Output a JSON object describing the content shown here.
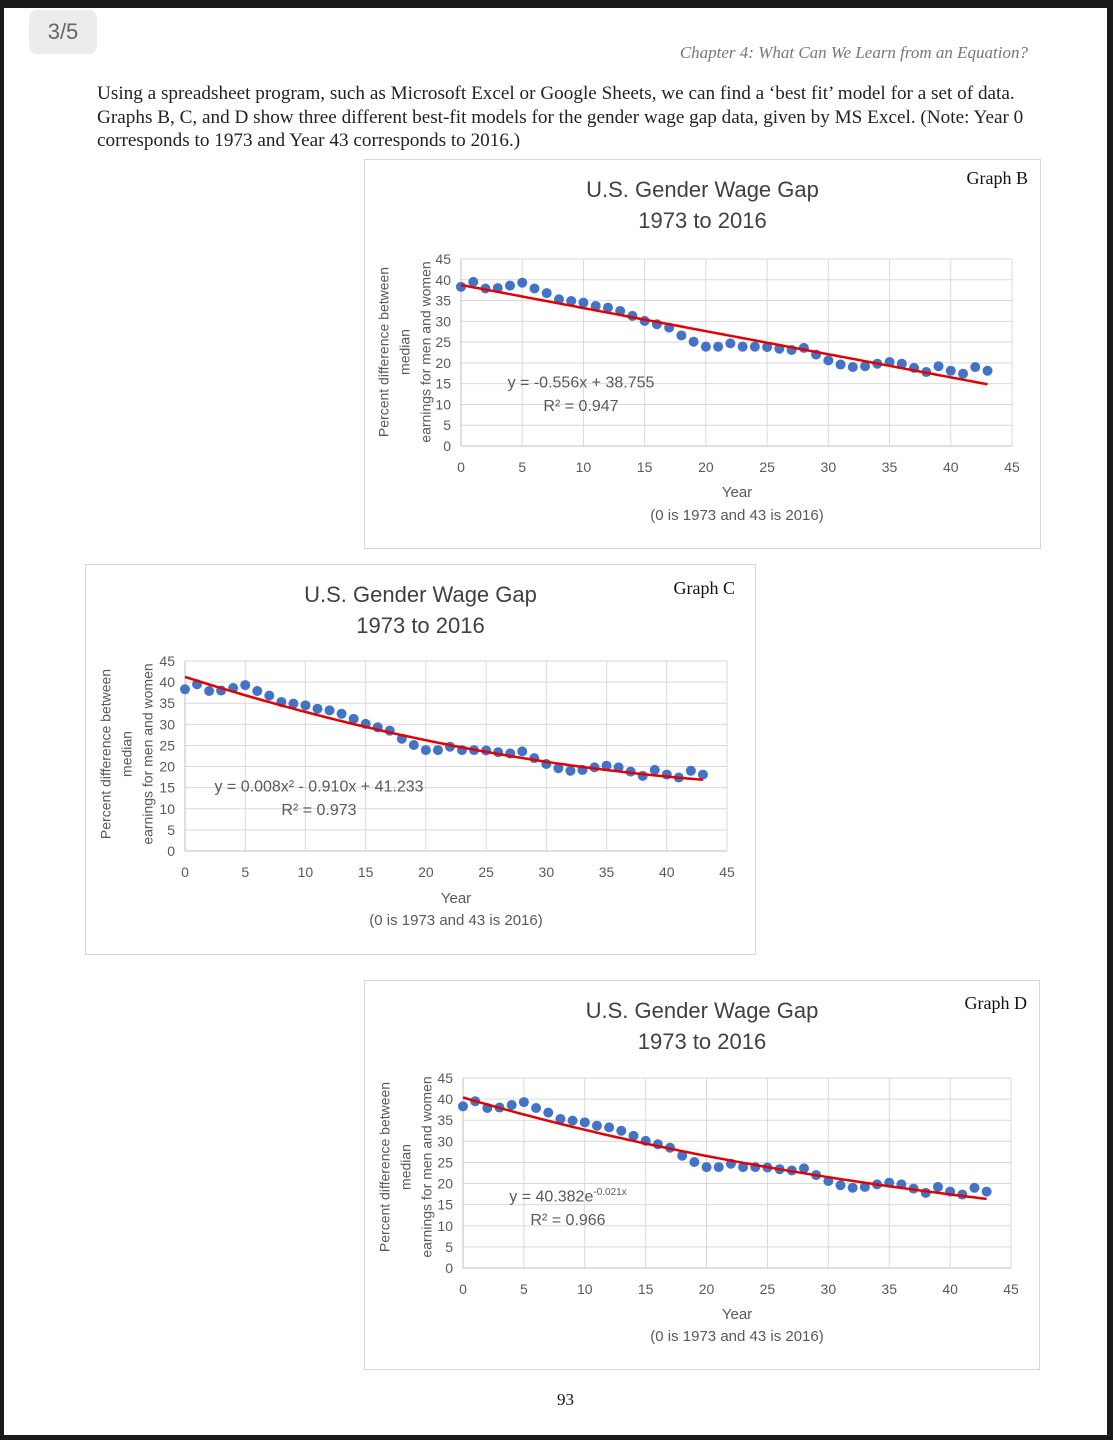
{
  "page_badge": "3/5",
  "header": {
    "chapter": "Chapter 4: What Can We Learn from an Equation?"
  },
  "intro_text": "Using a spreadsheet program, such as Microsoft Excel or Google Sheets, we can find a ‘best fit’ model for a set of data.  Graphs B, C, and D show three different best-fit models for the gender wage gap data, given by MS Excel. (Note: Year 0 corresponds to 1973 and Year 43 corresponds to 2016.)",
  "page_number": "93",
  "colors": {
    "points": "#4472C4",
    "trendline": "#E00000",
    "grid": "#D9D9D9"
  },
  "chart_data": [
    {
      "graph_label": "Graph B",
      "type": "scatter",
      "title_line1": "U.S. Gender Wage Gap",
      "title_line2": "1973 to 2016",
      "xlabel": "Year",
      "xlabel_sub": "(0 is 1973 and 43 is 2016)",
      "ylabel_line1": "Percent difference between median",
      "ylabel_line2": "earnings for men and women",
      "xlim": [
        0,
        45
      ],
      "ylim": [
        0,
        45
      ],
      "xticks": [
        "0",
        "5",
        "10",
        "15",
        "20",
        "25",
        "30",
        "35",
        "40",
        "45"
      ],
      "yticks": [
        "0",
        "5",
        "10",
        "15",
        "20",
        "25",
        "30",
        "35",
        "40",
        "45"
      ],
      "grid": true,
      "trendline": {
        "model": "linear",
        "coefficients": {
          "a": -0.556,
          "b": 38.755
        },
        "equation": "y = -0.556x + 38.755",
        "equation_sup": "",
        "r2": "R² = 0.947"
      },
      "x": [
        0,
        1,
        2,
        3,
        4,
        5,
        6,
        7,
        8,
        9,
        10,
        11,
        12,
        13,
        14,
        15,
        16,
        17,
        18,
        19,
        20,
        21,
        22,
        23,
        24,
        25,
        26,
        27,
        28,
        29,
        30,
        31,
        32,
        33,
        34,
        35,
        36,
        37,
        38,
        39,
        40,
        41,
        42,
        43
      ],
      "y": [
        38.3,
        39.5,
        37.9,
        38.0,
        38.6,
        39.3,
        37.9,
        36.8,
        35.3,
        34.9,
        34.5,
        33.7,
        33.3,
        32.5,
        31.3,
        30.1,
        29.3,
        28.5,
        26.6,
        25.1,
        23.9,
        23.9,
        24.7,
        23.9,
        23.9,
        23.8,
        23.4,
        23.1,
        23.6,
        22.0,
        20.6,
        19.6,
        19.0,
        19.2,
        19.8,
        20.2,
        19.8,
        18.8,
        17.8,
        19.2,
        18.1,
        17.4,
        19.0,
        18.1
      ]
    },
    {
      "graph_label": "Graph C",
      "type": "scatter",
      "title_line1": "U.S. Gender Wage Gap",
      "title_line2": "1973 to 2016",
      "xlabel": "Year",
      "xlabel_sub": "(0 is 1973 and 43 is 2016)",
      "ylabel_line1": "Percent difference between median",
      "ylabel_line2": "earnings for men and women",
      "xlim": [
        0,
        45
      ],
      "ylim": [
        0,
        45
      ],
      "xticks": [
        "0",
        "5",
        "10",
        "15",
        "20",
        "25",
        "30",
        "35",
        "40",
        "45"
      ],
      "yticks": [
        "0",
        "5",
        "10",
        "15",
        "20",
        "25",
        "30",
        "35",
        "40",
        "45"
      ],
      "grid": true,
      "trendline": {
        "model": "quadratic",
        "coefficients": {
          "a": 0.008,
          "b": -0.91,
          "c": 41.233
        },
        "equation": "y = 0.008x² - 0.910x + 41.233",
        "equation_sup": "",
        "r2": "R² = 0.973"
      },
      "x": [
        0,
        1,
        2,
        3,
        4,
        5,
        6,
        7,
        8,
        9,
        10,
        11,
        12,
        13,
        14,
        15,
        16,
        17,
        18,
        19,
        20,
        21,
        22,
        23,
        24,
        25,
        26,
        27,
        28,
        29,
        30,
        31,
        32,
        33,
        34,
        35,
        36,
        37,
        38,
        39,
        40,
        41,
        42,
        43
      ],
      "y": [
        38.3,
        39.5,
        37.9,
        38.0,
        38.6,
        39.3,
        37.9,
        36.8,
        35.3,
        34.9,
        34.5,
        33.7,
        33.3,
        32.5,
        31.3,
        30.1,
        29.3,
        28.5,
        26.6,
        25.1,
        23.9,
        23.9,
        24.7,
        23.9,
        23.9,
        23.8,
        23.4,
        23.1,
        23.6,
        22.0,
        20.6,
        19.6,
        19.0,
        19.2,
        19.8,
        20.2,
        19.8,
        18.8,
        17.8,
        19.2,
        18.1,
        17.4,
        19.0,
        18.1
      ]
    },
    {
      "graph_label": "Graph D",
      "type": "scatter",
      "title_line1": "U.S. Gender Wage Gap",
      "title_line2": "1973 to 2016",
      "xlabel": "Year",
      "xlabel_sub": "(0 is 1973 and 43 is 2016)",
      "ylabel_line1": "Percent difference between median",
      "ylabel_line2": "earnings for men and women",
      "xlim": [
        0,
        45
      ],
      "ylim": [
        0,
        45
      ],
      "xticks": [
        "0",
        "5",
        "10",
        "15",
        "20",
        "25",
        "30",
        "35",
        "40",
        "45"
      ],
      "yticks": [
        "0",
        "5",
        "10",
        "15",
        "20",
        "25",
        "30",
        "35",
        "40",
        "45"
      ],
      "grid": true,
      "trendline": {
        "model": "exponential",
        "coefficients": {
          "a": 40.382,
          "k": -0.021
        },
        "equation": "y = 40.382e",
        "equation_sup": "-0.021x",
        "r2": "R² = 0.966"
      },
      "x": [
        0,
        1,
        2,
        3,
        4,
        5,
        6,
        7,
        8,
        9,
        10,
        11,
        12,
        13,
        14,
        15,
        16,
        17,
        18,
        19,
        20,
        21,
        22,
        23,
        24,
        25,
        26,
        27,
        28,
        29,
        30,
        31,
        32,
        33,
        34,
        35,
        36,
        37,
        38,
        39,
        40,
        41,
        42,
        43
      ],
      "y": [
        38.3,
        39.5,
        37.9,
        38.0,
        38.6,
        39.3,
        37.9,
        36.8,
        35.3,
        34.9,
        34.5,
        33.7,
        33.3,
        32.5,
        31.3,
        30.1,
        29.3,
        28.5,
        26.6,
        25.1,
        23.9,
        23.9,
        24.7,
        23.9,
        23.9,
        23.8,
        23.4,
        23.1,
        23.6,
        22.0,
        20.6,
        19.6,
        19.0,
        19.2,
        19.8,
        20.2,
        19.8,
        18.8,
        17.8,
        19.2,
        18.1,
        17.4,
        19.0,
        18.1
      ]
    }
  ]
}
